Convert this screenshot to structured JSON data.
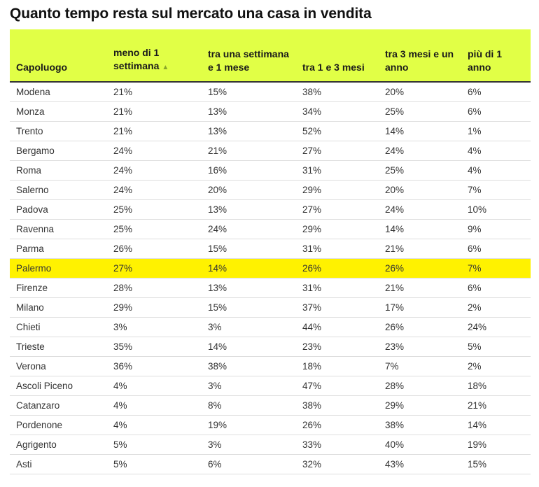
{
  "chart_data": {
    "type": "table",
    "title": "Quanto tempo resta sul mercato una casa in vendita",
    "columns": [
      "Capoluogo",
      "meno di 1 settimana",
      "tra una settimana e 1 mese",
      "tra 1 e 3 mesi",
      "tra 3 mesi e un anno",
      "più di 1 anno"
    ],
    "sort_column_index": 1,
    "sort_direction": "ascending",
    "sort_indicator": "▲",
    "highlight_color": "#fff200",
    "header_color": "#e1ff46",
    "rows": [
      {
        "city": "Modena",
        "values": [
          "21%",
          "15%",
          "38%",
          "20%",
          "6%"
        ]
      },
      {
        "city": "Monza",
        "values": [
          "21%",
          "13%",
          "34%",
          "25%",
          "6%"
        ]
      },
      {
        "city": "Trento",
        "values": [
          "21%",
          "13%",
          "52%",
          "14%",
          "1%"
        ]
      },
      {
        "city": "Bergamo",
        "values": [
          "24%",
          "21%",
          "27%",
          "24%",
          "4%"
        ]
      },
      {
        "city": "Roma",
        "values": [
          "24%",
          "16%",
          "31%",
          "25%",
          "4%"
        ]
      },
      {
        "city": "Salerno",
        "values": [
          "24%",
          "20%",
          "29%",
          "20%",
          "7%"
        ]
      },
      {
        "city": "Padova",
        "values": [
          "25%",
          "13%",
          "27%",
          "24%",
          "10%"
        ]
      },
      {
        "city": "Ravenna",
        "values": [
          "25%",
          "24%",
          "29%",
          "14%",
          "9%"
        ]
      },
      {
        "city": "Parma",
        "values": [
          "26%",
          "15%",
          "31%",
          "21%",
          "6%"
        ]
      },
      {
        "city": "Palermo",
        "values": [
          "27%",
          "14%",
          "26%",
          "26%",
          "7%"
        ],
        "highlighted": true
      },
      {
        "city": "Firenze",
        "values": [
          "28%",
          "13%",
          "31%",
          "21%",
          "6%"
        ]
      },
      {
        "city": "Milano",
        "values": [
          "29%",
          "15%",
          "37%",
          "17%",
          "2%"
        ]
      },
      {
        "city": "Chieti",
        "values": [
          "3%",
          "3%",
          "44%",
          "26%",
          "24%"
        ]
      },
      {
        "city": "Trieste",
        "values": [
          "35%",
          "14%",
          "23%",
          "23%",
          "5%"
        ]
      },
      {
        "city": "Verona",
        "values": [
          "36%",
          "38%",
          "18%",
          "7%",
          "2%"
        ]
      },
      {
        "city": "Ascoli Piceno",
        "values": [
          "4%",
          "3%",
          "47%",
          "28%",
          "18%"
        ]
      },
      {
        "city": "Catanzaro",
        "values": [
          "4%",
          "8%",
          "38%",
          "29%",
          "21%"
        ]
      },
      {
        "city": "Pordenone",
        "values": [
          "4%",
          "19%",
          "26%",
          "38%",
          "14%"
        ]
      },
      {
        "city": "Agrigento",
        "values": [
          "5%",
          "3%",
          "33%",
          "40%",
          "19%"
        ]
      },
      {
        "city": "Asti",
        "values": [
          "5%",
          "6%",
          "32%",
          "43%",
          "15%"
        ]
      }
    ]
  }
}
